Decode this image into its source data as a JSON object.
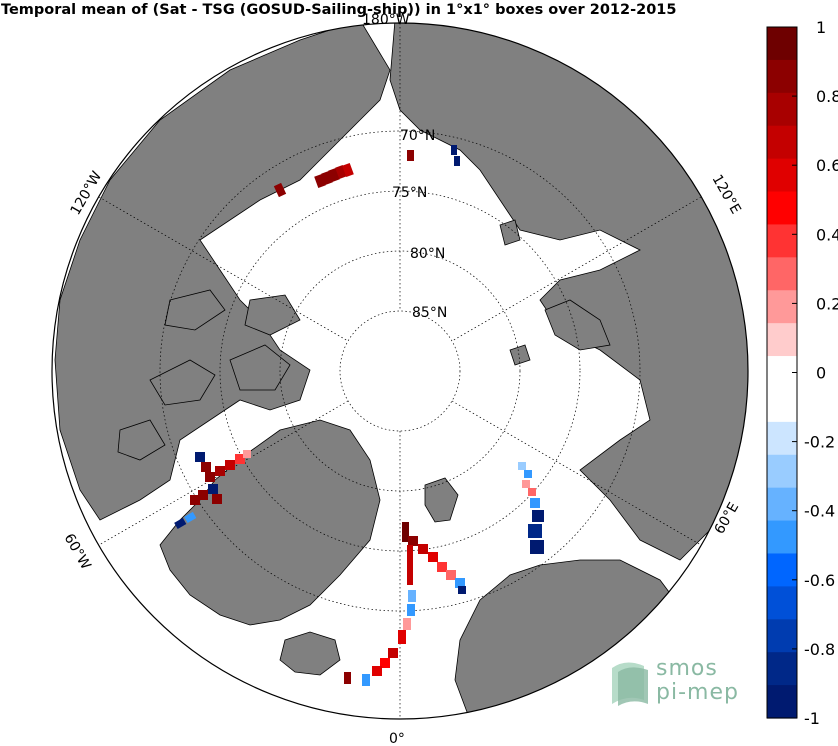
{
  "title": "Temporal mean of (Sat - TSG (GOSUD-Sailing-ship)) in 1°x1° boxes over 2012-2015",
  "map": {
    "projection": "north polar stereographic",
    "latitude_labels": [
      "70°N",
      "75°N",
      "80°N",
      "85°N"
    ],
    "longitude_labels": [
      "180°W",
      "120°W",
      "120°E",
      "60°W",
      "60°E",
      "0°"
    ],
    "land_color": "#808080",
    "ocean_color": "#ffffff",
    "graticule": "dotted"
  },
  "colorbar": {
    "min": -1,
    "max": 1,
    "tick_labels": [
      "1",
      "0.8",
      "0.6",
      "0.4",
      "0.2",
      "0",
      "-0.2",
      "-0.4",
      "-0.6",
      "-0.8",
      "-1"
    ],
    "colors_top_to_bottom": [
      "#6e0000",
      "#8c0000",
      "#a80000",
      "#c40000",
      "#e00000",
      "#ff0000",
      "#ff3333",
      "#ff6666",
      "#ff9999",
      "#ffcccc",
      "#ffffff",
      "#ffffff",
      "#cce5ff",
      "#99ccff",
      "#66b2ff",
      "#3399ff",
      "#0066ff",
      "#0050d8",
      "#003cb0",
      "#002888",
      "#001a70"
    ]
  },
  "logo": {
    "line1": "smos",
    "line2": "pi-mep"
  }
}
